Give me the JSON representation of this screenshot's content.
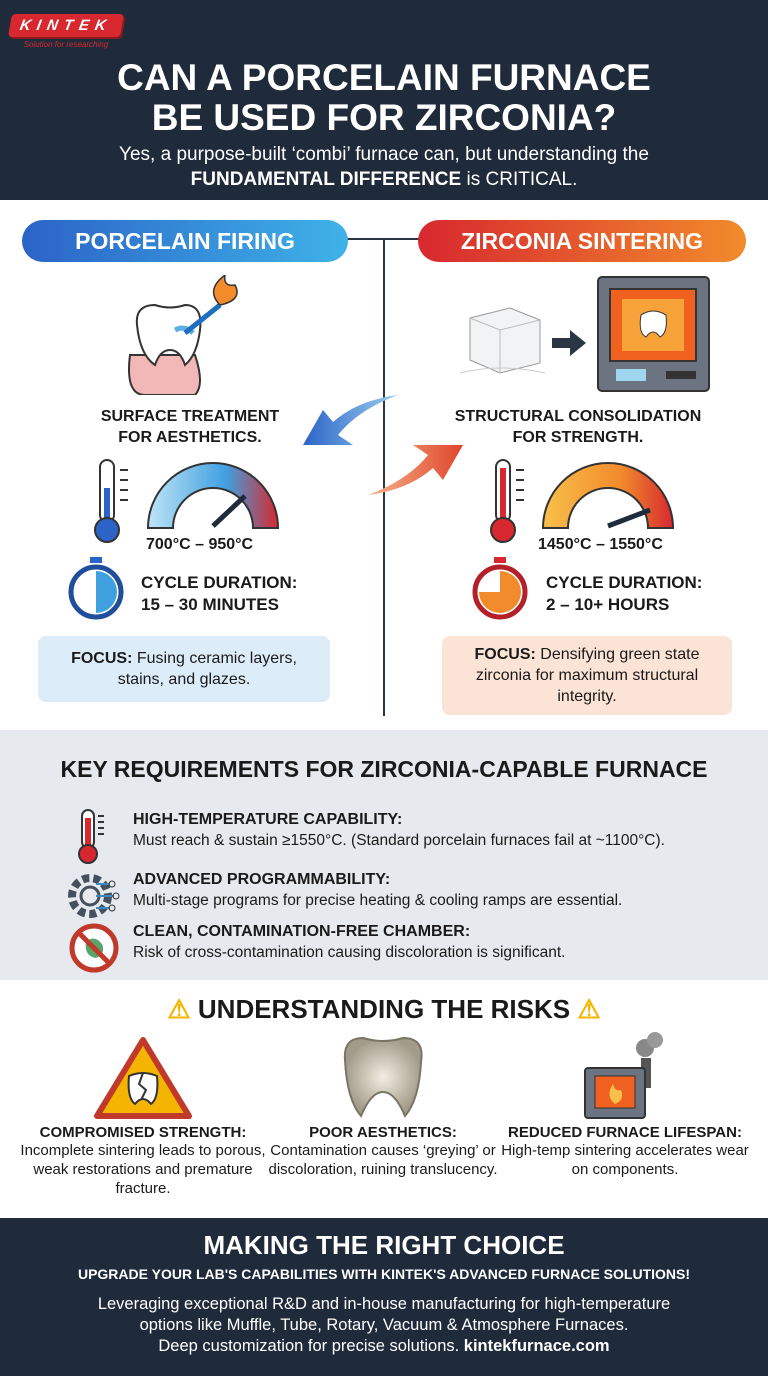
{
  "logo": {
    "name": "KINTEK",
    "tagline": "Solution for researching"
  },
  "header": {
    "title_line1": "CAN A PORCELAIN FURNACE",
    "title_line2": "BE USED FOR ZIRCONIA?",
    "subtitle_line1": "Yes, a purpose-built ‘combi’ furnace can, but understanding the",
    "subtitle_bold": "FUNDAMENTAL DIFFERENCE",
    "subtitle_end": " is CRITICAL."
  },
  "porcelain": {
    "label": "PORCELAIN FIRING",
    "purpose_line1": "SURFACE TREATMENT",
    "purpose_line2": "FOR AESTHETICS.",
    "temp": "700°C – 950°C",
    "cycle_label": "CYCLE DURATION:",
    "cycle_value": "15 – 30 MINUTES",
    "focus_label": "FOCUS:",
    "focus_text": " Fusing ceramic layers, stains, and glazes.",
    "color": "#2b63c7"
  },
  "zirconia": {
    "label": "ZIRCONIA SINTERING",
    "purpose_line1": "STRUCTURAL CONSOLIDATION",
    "purpose_line2": "FOR STRENGTH.",
    "temp": "1450°C – 1550°C",
    "cycle_label": "CYCLE DURATION:",
    "cycle_value": "2 – 10+ HOURS",
    "focus_label": "FOCUS:",
    "focus_text": " Densifying green state zirconia for maximum structural integrity.",
    "color": "#d7282f"
  },
  "requirements": {
    "title": "KEY REQUIREMENTS FOR ZIRCONIA-CAPABLE FURNACE",
    "items": [
      {
        "title": "HIGH-TEMPERATURE CAPABILITY:",
        "desc": "Must reach & sustain ≥1550°C. (Standard porcelain furnaces fail at ~1100°C).",
        "icon": "thermometer-icon"
      },
      {
        "title": "ADVANCED PROGRAMMABILITY:",
        "desc": "Multi-stage programs for precise heating & cooling ramps are essential.",
        "icon": "gear-circuit-icon"
      },
      {
        "title": "CLEAN, CONTAMINATION-FREE CHAMBER:",
        "desc": "Risk of cross-contamination causing discoloration is significant.",
        "icon": "no-contamination-icon"
      }
    ]
  },
  "risks": {
    "title": "UNDERSTANDING THE RISKS",
    "items": [
      {
        "title": "COMPROMISED STRENGTH:",
        "desc": "Incomplete sintering leads to porous, weak restorations and premature fracture.",
        "icon": "broken-tooth-warning-icon"
      },
      {
        "title": "POOR AESTHETICS:",
        "desc": "Contamination causes ‘greying’ or discoloration, ruining translucency.",
        "icon": "grey-crown-icon"
      },
      {
        "title": "REDUCED FURNACE LIFESPAN:",
        "desc": "High-temp sintering accelerates wear on components.",
        "icon": "smoking-furnace-icon"
      }
    ]
  },
  "footer": {
    "title": "MAKING THE RIGHT CHOICE",
    "subtitle": "UPGRADE YOUR LAB'S CAPABILITIES WITH KINTEK'S ADVANCED FURNACE SOLUTIONS!",
    "line1": "Leveraging exceptional R&D and in-house manufacturing for high-temperature",
    "line2": "options like Muffle, Tube, Rotary, Vacuum & Atmosphere Furnaces.",
    "line3": "Deep customization for precise solutions. ",
    "website": "kintekfurnace.com"
  }
}
